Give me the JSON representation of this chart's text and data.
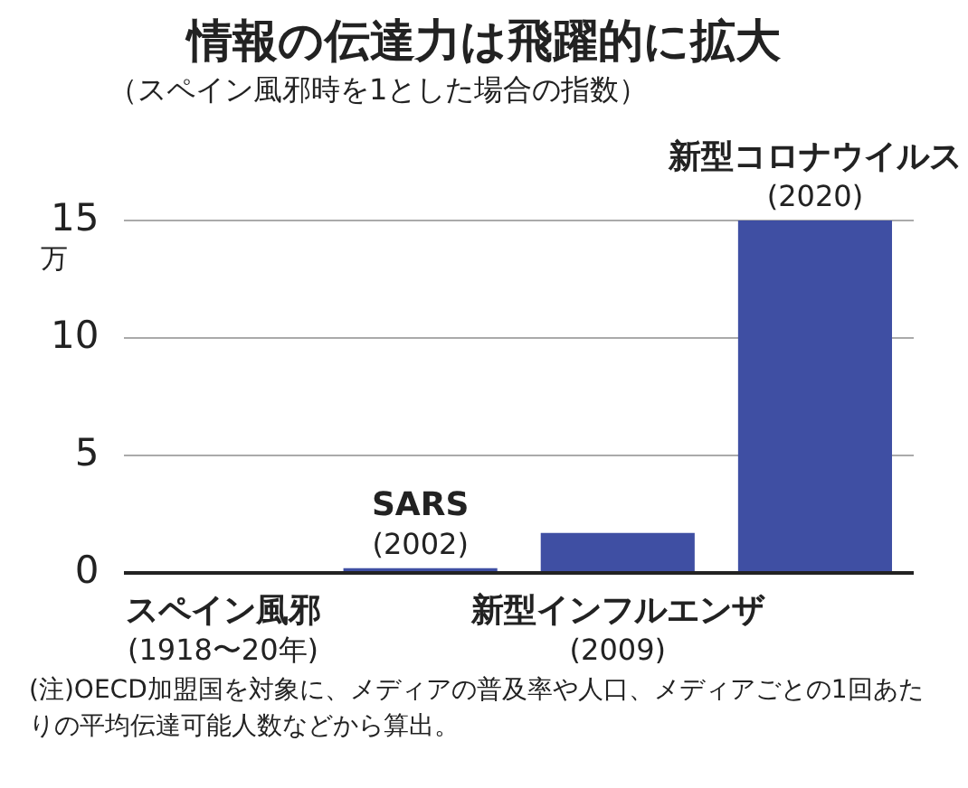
{
  "chart_data": {
    "type": "bar",
    "title": "情報の伝達力は飛躍的に拡大",
    "subtitle": "（スペイン風邪時を1とした場合の指数）",
    "ylabel": "万",
    "categories": [
      "スペイン風邪\n(1918〜20年)",
      "SARS\n(2002)",
      "新型インフルエンザ\n(2009)",
      "新型コロナウイルス\n(2020)"
    ],
    "values": [
      0,
      0.2,
      1.7,
      15
    ],
    "color": "#3f4fa3",
    "ylim": [
      0,
      15
    ],
    "yticks": [
      0,
      5,
      10,
      15
    ],
    "grid": "y",
    "annotations": [
      "(注)OECD加盟国を対象に、メディアの普及率や人口、メディアごとの1回あたりの平均伝達可能人数などから算出。"
    ]
  }
}
